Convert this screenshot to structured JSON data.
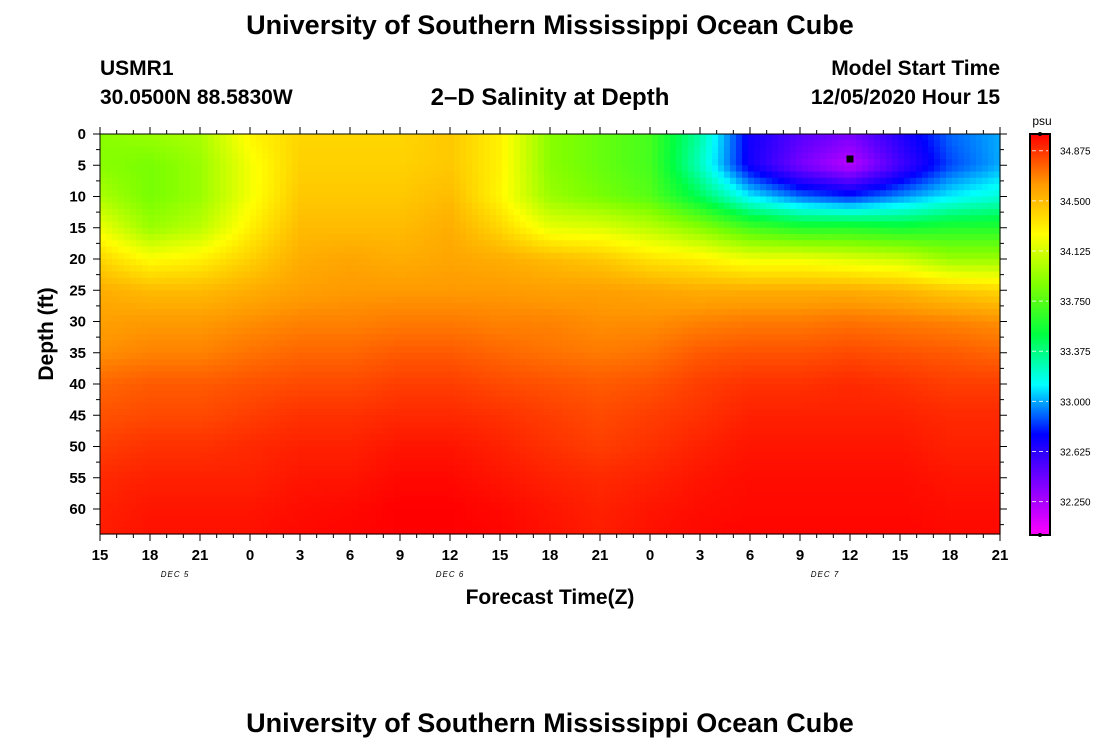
{
  "page": {
    "title": "University of Southern Mississippi Ocean Cube",
    "footer_title": "University of Southern Mississippi Ocean Cube",
    "station_id": "USMR1",
    "station_coords": "30.0500N 88.5830W",
    "model_start_label": "Model Start Time",
    "model_start_value": "12/05/2020 Hour 15"
  },
  "chart_data": {
    "type": "heatmap",
    "title": "2–D Salinity at Depth",
    "xlabel": "Forecast Time(Z)",
    "ylabel": "Depth (ft)",
    "x_ticks": [
      "15",
      "18",
      "21",
      "0",
      "3",
      "6",
      "9",
      "12",
      "15",
      "18",
      "21",
      "0",
      "3",
      "6",
      "9",
      "12",
      "15",
      "18",
      "21"
    ],
    "x_date_labels": [
      {
        "label": "DEC 5",
        "at_tick": 1.5
      },
      {
        "label": "DEC 6",
        "at_tick": 7
      },
      {
        "label": "DEC 7",
        "at_tick": 14.5
      }
    ],
    "y_ticks": [
      0,
      5,
      10,
      15,
      20,
      25,
      30,
      35,
      40,
      45,
      50,
      55,
      60
    ],
    "ylim": [
      0,
      64
    ],
    "y_inverted": true,
    "colorbar": {
      "unit": "psu",
      "range": [
        32.0,
        35.0
      ],
      "ticks": [
        "34.875",
        "34.500",
        "34.125",
        "33.750",
        "33.375",
        "33.000",
        "32.625",
        "32.250"
      ],
      "tick_values": [
        34.875,
        34.5,
        34.125,
        33.75,
        33.375,
        33.0,
        32.625,
        32.25
      ],
      "colors": [
        [
          32.0,
          "#ff00ff"
        ],
        [
          32.375,
          "#8000ff"
        ],
        [
          32.75,
          "#0000ff"
        ],
        [
          33.125,
          "#00ffff"
        ],
        [
          33.5,
          "#00ff40"
        ],
        [
          33.875,
          "#80ff00"
        ],
        [
          34.25,
          "#ffff00"
        ],
        [
          34.625,
          "#ff9900"
        ],
        [
          35.0,
          "#ff0000"
        ]
      ]
    },
    "grid_hours": [
      0,
      3,
      6,
      9,
      12,
      15,
      18,
      21,
      24,
      27,
      30,
      33,
      36,
      39,
      42,
      45,
      48,
      51,
      54
    ],
    "grid_depths": [
      0,
      5,
      10,
      15,
      20,
      25,
      30,
      35,
      40,
      45,
      50,
      55,
      60,
      64
    ],
    "salinity": [
      [
        33.9,
        33.95,
        34.0,
        34.28,
        34.4,
        34.4,
        34.4,
        34.45,
        34.3,
        33.9,
        33.8,
        33.7,
        33.3,
        32.7,
        32.5,
        32.4,
        32.65,
        32.9,
        33.0
      ],
      [
        33.9,
        33.85,
        33.95,
        34.22,
        34.42,
        34.42,
        34.42,
        34.45,
        34.3,
        33.9,
        33.8,
        33.7,
        33.25,
        32.7,
        32.4,
        32.2,
        32.55,
        32.85,
        33.0
      ],
      [
        34.0,
        33.85,
        33.95,
        34.22,
        34.45,
        34.45,
        34.45,
        34.5,
        34.28,
        33.95,
        33.85,
        33.75,
        33.45,
        33.1,
        32.9,
        32.8,
        32.95,
        33.1,
        33.2
      ],
      [
        34.2,
        33.95,
        34.05,
        34.3,
        34.5,
        34.5,
        34.5,
        34.55,
        34.4,
        34.18,
        34.15,
        34.05,
        33.9,
        33.7,
        33.6,
        33.6,
        33.55,
        33.6,
        33.6
      ],
      [
        34.4,
        34.25,
        34.3,
        34.42,
        34.55,
        34.58,
        34.55,
        34.58,
        34.55,
        34.5,
        34.45,
        34.35,
        34.3,
        34.2,
        34.2,
        34.15,
        34.1,
        33.95,
        33.95
      ],
      [
        34.55,
        34.5,
        34.5,
        34.55,
        34.6,
        34.62,
        34.62,
        34.62,
        34.62,
        34.6,
        34.6,
        34.58,
        34.55,
        34.55,
        34.55,
        34.55,
        34.52,
        34.45,
        34.4
      ],
      [
        34.6,
        34.62,
        34.62,
        34.65,
        34.68,
        34.68,
        34.7,
        34.7,
        34.68,
        34.68,
        34.65,
        34.65,
        34.68,
        34.7,
        34.7,
        34.72,
        34.7,
        34.68,
        34.65
      ],
      [
        34.65,
        34.68,
        34.68,
        34.72,
        34.75,
        34.75,
        34.78,
        34.78,
        34.75,
        34.72,
        34.7,
        34.72,
        34.78,
        34.8,
        34.8,
        34.82,
        34.8,
        34.78,
        34.75
      ],
      [
        34.75,
        34.78,
        34.78,
        34.8,
        34.82,
        34.82,
        34.85,
        34.85,
        34.82,
        34.8,
        34.78,
        34.8,
        34.85,
        34.88,
        34.88,
        34.9,
        34.88,
        34.85,
        34.85
      ],
      [
        34.8,
        34.82,
        34.82,
        34.85,
        34.88,
        34.88,
        34.9,
        34.9,
        34.88,
        34.85,
        34.82,
        34.85,
        34.88,
        34.92,
        34.92,
        34.92,
        34.92,
        34.9,
        34.9
      ],
      [
        34.85,
        34.88,
        34.88,
        34.9,
        34.92,
        34.92,
        34.95,
        34.95,
        34.92,
        34.88,
        34.85,
        34.88,
        34.92,
        34.95,
        34.95,
        34.95,
        34.95,
        34.92,
        34.92
      ],
      [
        34.9,
        34.92,
        34.92,
        34.92,
        34.95,
        34.95,
        34.98,
        34.98,
        34.95,
        34.92,
        34.9,
        34.92,
        34.95,
        34.97,
        34.97,
        34.97,
        34.97,
        34.95,
        34.95
      ],
      [
        34.92,
        34.95,
        34.95,
        34.95,
        34.97,
        34.98,
        35.0,
        35.0,
        34.98,
        34.95,
        34.92,
        34.95,
        34.97,
        34.98,
        34.98,
        34.98,
        34.98,
        34.97,
        34.97
      ],
      [
        34.93,
        34.96,
        34.96,
        34.96,
        34.98,
        34.99,
        35.0,
        35.0,
        34.99,
        34.96,
        34.93,
        34.96,
        34.98,
        34.99,
        34.99,
        34.99,
        34.99,
        34.98,
        34.98
      ]
    ],
    "marker": {
      "hour": 45,
      "depth": 4
    }
  }
}
